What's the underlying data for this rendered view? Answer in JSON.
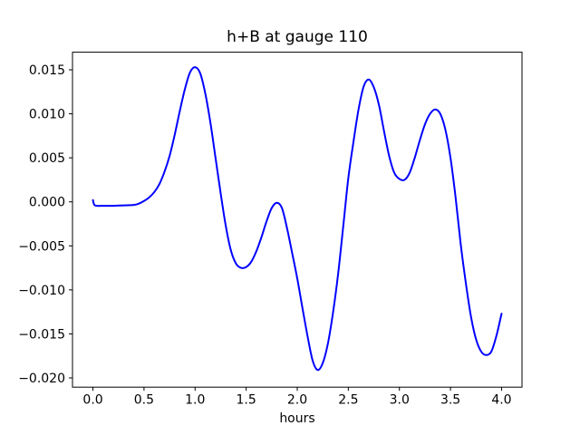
{
  "figure": {
    "background": "#ffffff",
    "spine_color": "#000000",
    "tick_color": "#000000",
    "text_color": "#000000"
  },
  "chart_data": {
    "type": "line",
    "title": "h+B at gauge 110",
    "xlabel": "hours",
    "ylabel": "",
    "grid": false,
    "legend": null,
    "xlim": [
      -0.2,
      4.2
    ],
    "ylim": [
      -0.02105,
      0.017
    ],
    "xticks": [
      0.0,
      0.5,
      1.0,
      1.5,
      2.0,
      2.5,
      3.0,
      3.5,
      4.0
    ],
    "xtick_labels": [
      "0.0",
      "0.5",
      "1.0",
      "1.5",
      "2.0",
      "2.5",
      "3.0",
      "3.5",
      "4.0"
    ],
    "yticks": [
      0.015,
      0.01,
      0.005,
      0.0,
      -0.005,
      -0.01,
      -0.015,
      -0.02
    ],
    "ytick_labels": [
      "0.015",
      "0.010",
      "0.005",
      "0.000",
      "−0.005",
      "−0.010",
      "−0.015",
      "−0.020"
    ],
    "series": [
      {
        "name": "h+B",
        "color": "#0000ff",
        "line_width": 2,
        "x": [
          0.0,
          0.02,
          0.1,
          0.2,
          0.3,
          0.4,
          0.45,
          0.5,
          0.55,
          0.6,
          0.65,
          0.7,
          0.75,
          0.8,
          0.85,
          0.9,
          0.95,
          1.0,
          1.05,
          1.1,
          1.15,
          1.2,
          1.25,
          1.3,
          1.35,
          1.4,
          1.45,
          1.5,
          1.55,
          1.6,
          1.65,
          1.7,
          1.75,
          1.8,
          1.85,
          1.9,
          1.95,
          2.0,
          2.05,
          2.1,
          2.15,
          2.2,
          2.25,
          2.3,
          2.35,
          2.4,
          2.45,
          2.5,
          2.55,
          2.6,
          2.65,
          2.7,
          2.75,
          2.8,
          2.85,
          2.9,
          2.95,
          3.0,
          3.05,
          3.1,
          3.15,
          3.2,
          3.25,
          3.3,
          3.35,
          3.4,
          3.45,
          3.5,
          3.55,
          3.6,
          3.65,
          3.7,
          3.75,
          3.8,
          3.85,
          3.9,
          3.95,
          4.0
        ],
        "y": [
          0.0002,
          -0.0004,
          -0.00045,
          -0.00045,
          -0.0004,
          -0.00035,
          -0.0002,
          0.0001,
          0.0005,
          0.0011,
          0.002,
          0.0034,
          0.0052,
          0.0076,
          0.0103,
          0.0128,
          0.0147,
          0.0153,
          0.0146,
          0.0123,
          0.009,
          0.005,
          0.001,
          -0.0027,
          -0.0055,
          -0.007,
          -0.0075,
          -0.0074,
          -0.0068,
          -0.0056,
          -0.004,
          -0.0022,
          -0.0007,
          -0.0001,
          -0.0007,
          -0.003,
          -0.0058,
          -0.0087,
          -0.012,
          -0.0152,
          -0.018,
          -0.0191,
          -0.0183,
          -0.0161,
          -0.0126,
          -0.0082,
          -0.0028,
          0.0027,
          0.0068,
          0.0105,
          0.0131,
          0.0139,
          0.013,
          0.011,
          0.008,
          0.0052,
          0.0033,
          0.0026,
          0.0025,
          0.0033,
          0.005,
          0.007,
          0.0088,
          0.01,
          0.0105,
          0.01,
          0.0082,
          0.005,
          0.0005,
          -0.0048,
          -0.0092,
          -0.013,
          -0.0156,
          -0.017,
          -0.0174,
          -0.017,
          -0.0152,
          -0.0127
        ]
      }
    ]
  }
}
